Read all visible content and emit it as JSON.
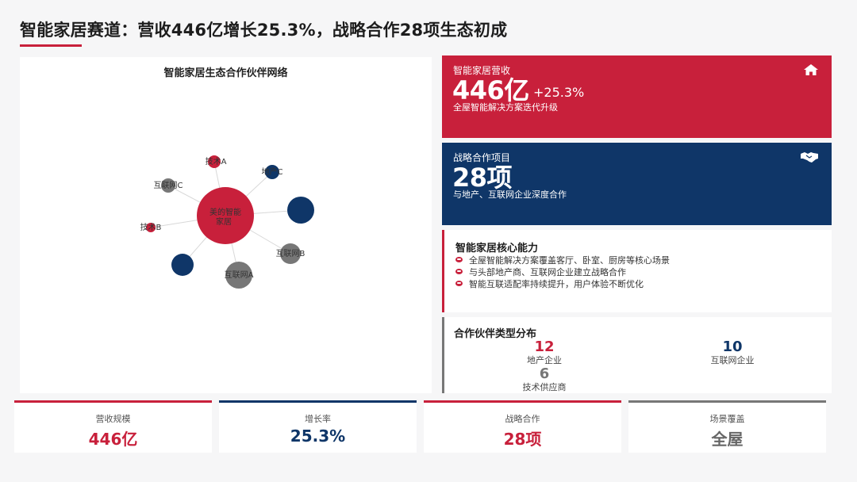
{
  "header": {
    "title": "智能家居赛道：营收446亿增长25.3%，战略合作28项生态初成"
  },
  "network": {
    "title": "智能家居生态合作伙伴网络",
    "center": {
      "label_line1": "美的智能",
      "label_line2": "家居",
      "color": "#c8203b"
    },
    "nodes": [
      {
        "label": "技术A",
        "color": "#c8203b"
      },
      {
        "label": "地产C",
        "color": "#0f3668"
      },
      {
        "label": "互联网C",
        "color": "#777777"
      },
      {
        "label": "",
        "color": "#0f3668"
      },
      {
        "label": "技术B",
        "color": "#c8203b"
      },
      {
        "label": "互联网B",
        "color": "#777777"
      },
      {
        "label": "",
        "color": "#0f3668"
      },
      {
        "label": "互联网A",
        "color": "#777777"
      }
    ]
  },
  "revenue_card": {
    "label": "智能家居营收",
    "value": "446亿",
    "growth": "+25.3%",
    "subtitle": "全屋智能解决方案迭代升级",
    "icon": "home-icon",
    "color": "#c8203b"
  },
  "cooperation_card": {
    "label": "战略合作项目",
    "value": "28项",
    "subtitle": "与地产、互联网企业深度合作",
    "icon": "handshake-icon",
    "color": "#0f3668"
  },
  "capabilities": {
    "title": "智能家居核心能力",
    "items": [
      "全屋智能解决方案覆盖客厅、卧室、厨房等核心场景",
      "与头部地产商、互联网企业建立战略合作",
      "智能互联适配率持续提升，用户体验不断优化"
    ]
  },
  "partner_distribution": {
    "title": "合作伙伴类型分布",
    "stats": [
      {
        "value": "12",
        "label": "地产企业",
        "color": "#c8203b"
      },
      {
        "value": "10",
        "label": "互联网企业",
        "color": "#0f3668"
      },
      {
        "value": "6",
        "label": "技术供应商",
        "color": "#777777"
      }
    ]
  },
  "kpis": [
    {
      "label": "营收规模",
      "value": "446亿",
      "color": "#c8203b"
    },
    {
      "label": "增长率",
      "value": "25.3%",
      "color": "#0f3668"
    },
    {
      "label": "战略合作",
      "value": "28项",
      "color": "#c8203b"
    },
    {
      "label": "场景覆盖",
      "value": "全屋",
      "color": "#777777"
    }
  ]
}
